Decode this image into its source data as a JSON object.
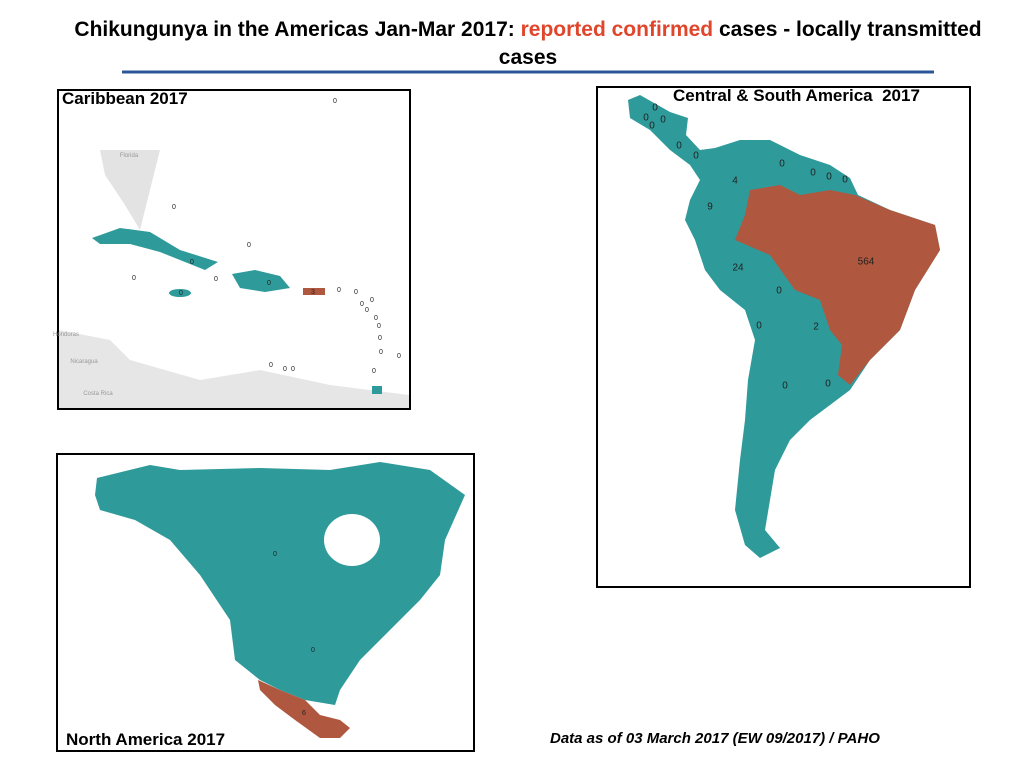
{
  "header": {
    "title_start": "Chikungunya in the Americas Jan-Mar 2017: ",
    "title_highlight": "reported confirmed",
    "title_end": " cases - locally transmitted cases"
  },
  "caribbean": {
    "title": "Caribbean 2017",
    "place_labels": [
      "Florida",
      "Honduras",
      "Nicaragua",
      "Costa Rica"
    ],
    "labels": [
      0,
      0,
      0,
      0,
      0,
      0,
      0,
      0,
      3,
      0,
      0,
      0,
      0,
      0,
      0,
      0,
      0,
      0,
      0,
      0,
      0,
      0,
      0
    ]
  },
  "central_south": {
    "title": "Central & South America  2017",
    "labels": [
      0,
      0,
      0,
      0,
      0,
      0,
      0,
      0,
      0,
      0,
      4,
      9,
      564,
      24,
      0,
      2,
      0,
      0,
      0
    ]
  },
  "north": {
    "title": "North America 2017",
    "labels": [
      0,
      0,
      6
    ]
  },
  "footer": {
    "source": "Data as of 03 March 2017 (EW 09/2017) / PAHO"
  }
}
